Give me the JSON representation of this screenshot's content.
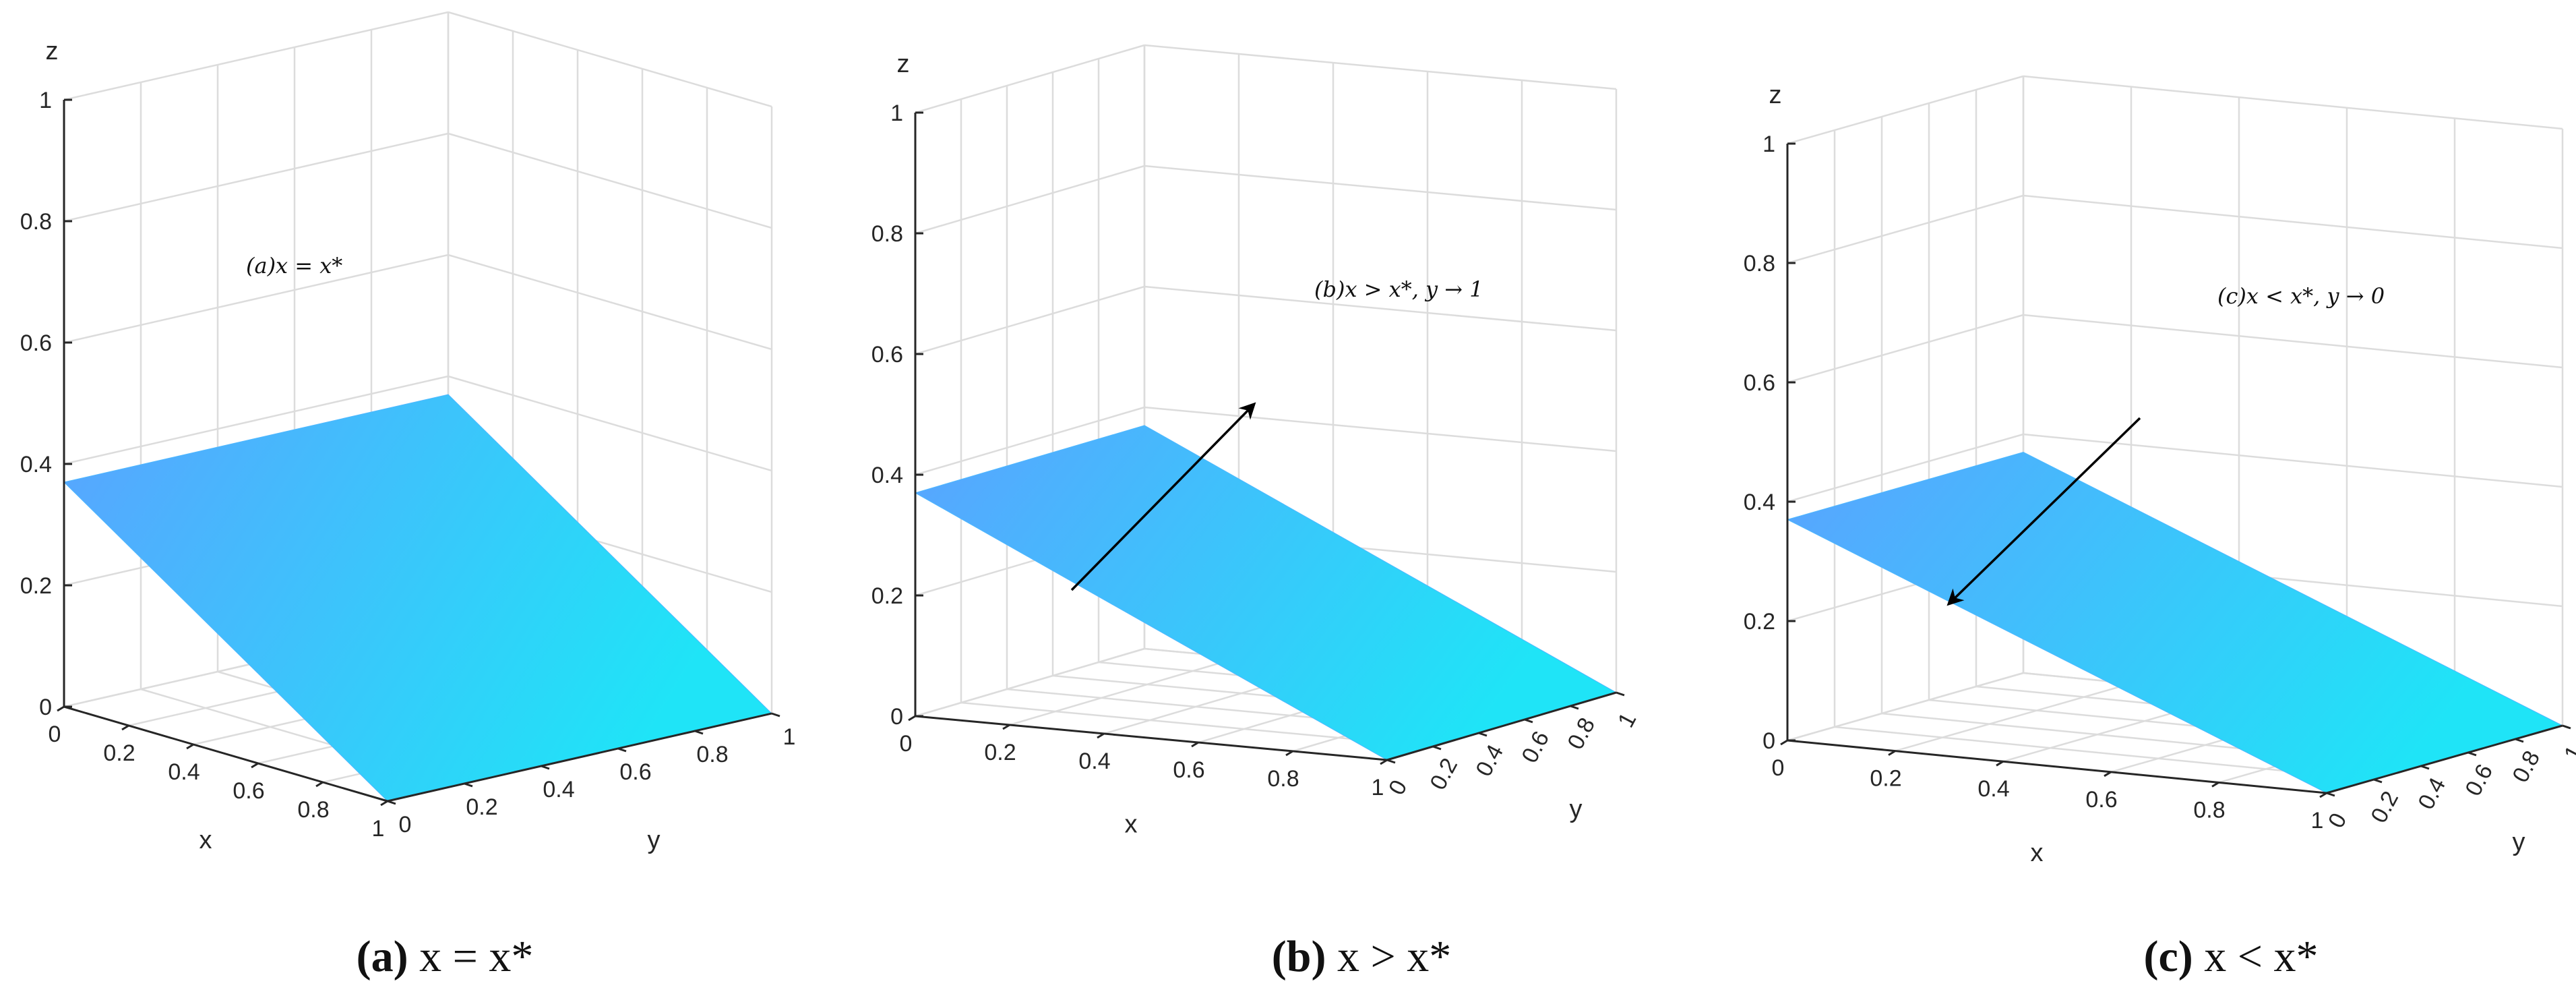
{
  "colors": {
    "surface_near": "#5aa3ff",
    "surface_far": "#1fe4f7",
    "grid": "#dcdcdc",
    "axis": "#262626",
    "arrow": "#000000"
  },
  "chart_data": [
    {
      "type": "surface",
      "panel": "a",
      "title": "(a)x = x*",
      "annotation": "(a)x = x*",
      "caption_tag": "(a)",
      "caption_text": " x = x*",
      "xlabel": "x",
      "ylabel": "y",
      "zlabel": "z",
      "xlim": [
        0,
        1
      ],
      "ylim": [
        0,
        1
      ],
      "zlim": [
        0,
        1
      ],
      "x_ticks": [
        "0",
        "0.2",
        "0.4",
        "0.6",
        "0.8",
        "1"
      ],
      "y_ticks": [
        "0",
        "0.2",
        "0.4",
        "0.6",
        "0.8",
        "1"
      ],
      "z_ticks": [
        "0",
        "0.2",
        "0.4",
        "0.6",
        "0.8",
        "1"
      ],
      "grid": true,
      "surface_corners": [
        {
          "x": 0,
          "y": 0,
          "z": 0.37
        },
        {
          "x": 1,
          "y": 0,
          "z": 0.0
        },
        {
          "x": 1,
          "y": 1,
          "z": 0.0
        },
        {
          "x": 0,
          "y": 1,
          "z": 0.37
        }
      ],
      "arrow": null
    },
    {
      "type": "surface",
      "panel": "b",
      "title": "(b)x > x*, y → 1",
      "annotation": "(b)x > x*, y → 1",
      "caption_tag": "(b)",
      "caption_text": " x > x*",
      "xlabel": "x",
      "ylabel": "y",
      "zlabel": "z",
      "xlim": [
        0,
        1
      ],
      "ylim": [
        0,
        1
      ],
      "zlim": [
        0,
        1
      ],
      "x_ticks": [
        "0",
        "0.2",
        "0.4",
        "0.6",
        "0.8",
        "1"
      ],
      "y_ticks": [
        "0",
        "0.2",
        "0.4",
        "0.6",
        "0.8",
        "1"
      ],
      "z_ticks": [
        "0",
        "0.2",
        "0.4",
        "0.6",
        "0.8",
        "1"
      ],
      "grid": true,
      "surface_corners": [
        {
          "x": 0,
          "y": 0,
          "z": 0.37
        },
        {
          "x": 1,
          "y": 0,
          "z": 0.0
        },
        {
          "x": 1,
          "y": 1,
          "z": 0.0
        },
        {
          "x": 0,
          "y": 1,
          "z": 0.37
        }
      ],
      "arrow": "toward y = 1"
    },
    {
      "type": "surface",
      "panel": "c",
      "title": "(c)x < x*, y → 0",
      "annotation": "(c)x < x*, y → 0",
      "caption_tag": "(c)",
      "caption_text": " x < x*",
      "xlabel": "x",
      "ylabel": "y",
      "zlabel": "z",
      "xlim": [
        0,
        1
      ],
      "ylim": [
        0,
        1
      ],
      "zlim": [
        0,
        1
      ],
      "x_ticks": [
        "0",
        "0.2",
        "0.4",
        "0.6",
        "0.8",
        "1"
      ],
      "y_ticks": [
        "0",
        "0.2",
        "0.4",
        "0.6",
        "0.8",
        "1"
      ],
      "z_ticks": [
        "0",
        "0.2",
        "0.4",
        "0.6",
        "0.8",
        "1"
      ],
      "grid": true,
      "surface_corners": [
        {
          "x": 0,
          "y": 0,
          "z": 0.37
        },
        {
          "x": 1,
          "y": 0,
          "z": 0.0
        },
        {
          "x": 1,
          "y": 1,
          "z": 0.0
        },
        {
          "x": 0,
          "y": 1,
          "z": 0.37
        }
      ],
      "arrow": "toward y = 0"
    }
  ]
}
